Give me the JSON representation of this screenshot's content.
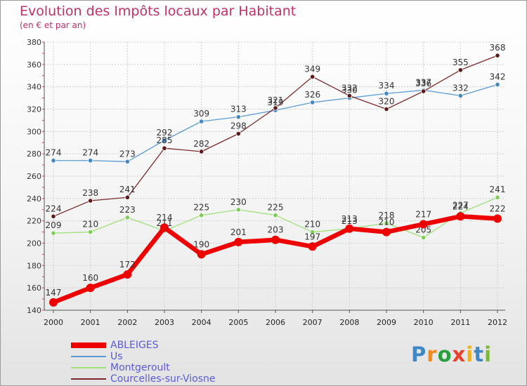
{
  "header": {
    "title": "Evolution des Impôts locaux par Habitant",
    "subtitle": "(en € et par an)"
  },
  "brand": {
    "text": "Proxiti",
    "letters": [
      {
        "ch": "P",
        "color": "#3f88c5"
      },
      {
        "ch": "r",
        "color": "#f08a24"
      },
      {
        "ch": "o",
        "color": "#2a9d3c"
      },
      {
        "ch": "x",
        "color": "#e8402a"
      },
      {
        "ch": "i",
        "color": "#f0b020"
      },
      {
        "ch": "t",
        "color": "#3f88c5"
      },
      {
        "ch": "i",
        "color": "#7ab83a"
      }
    ]
  },
  "chart_data": {
    "type": "line",
    "title": "Evolution des Impôts locaux par Habitant",
    "subtitle": "(en € et par an)",
    "x": [
      "2000",
      "2001",
      "2002",
      "2003",
      "2004",
      "2005",
      "2006",
      "2007",
      "2008",
      "2009",
      "2010",
      "2011",
      "2012"
    ],
    "ylim": [
      140,
      380
    ],
    "yticks": [
      140,
      160,
      180,
      200,
      220,
      240,
      260,
      280,
      300,
      320,
      340,
      360,
      380
    ],
    "grid": true,
    "legend_position": "bottom-left",
    "series": [
      {
        "name": "Us",
        "color": "#5b9bd5",
        "marker": "#3f88c5",
        "width": 1.3,
        "radius": 3.2,
        "values": [
          274,
          274,
          273,
          292,
          309,
          313,
          319,
          326,
          330,
          334,
          337,
          332,
          342
        ]
      },
      {
        "name": "Montgeroult",
        "color": "#9ee07a",
        "marker": "#7ccd55",
        "width": 1.3,
        "radius": 3.2,
        "values": [
          209,
          210,
          223,
          211,
          225,
          230,
          225,
          210,
          213,
          218,
          205,
          227,
          241
        ]
      },
      {
        "name": "Courcelles-sur-Viosne",
        "color": "#7a2a2a",
        "marker": "#5c1a1a",
        "width": 1.3,
        "radius": 3.2,
        "values": [
          224,
          238,
          241,
          285,
          282,
          298,
          321,
          349,
          332,
          320,
          336,
          355,
          368
        ]
      },
      {
        "name": "ABLEIGES",
        "color": "#ee0000",
        "marker": "#ee0000",
        "width": 6.5,
        "radius": 6,
        "values": [
          147,
          160,
          172,
          214,
          190,
          201,
          203,
          197,
          213,
          210,
          217,
          224,
          222
        ]
      }
    ],
    "legend_order": [
      "ABLEIGES",
      "Us",
      "Montgeroult",
      "Courcelles-sur-Viosne"
    ]
  }
}
